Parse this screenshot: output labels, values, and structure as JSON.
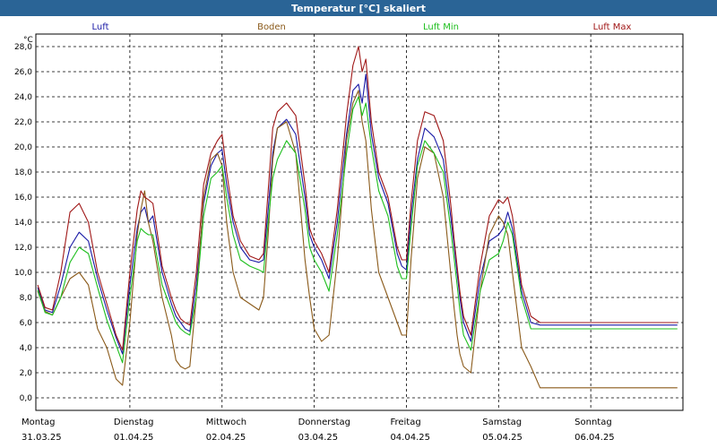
{
  "window": {
    "title": "Temperatur [°C] skaliert"
  },
  "colors": {
    "titlebar": "#2a6496"
  },
  "chart_data": {
    "type": "line",
    "ylabel": "°C",
    "ylim": [
      -1,
      29
    ],
    "yticks": [
      "0,0",
      "2,0",
      "4,0",
      "6,0",
      "8,0",
      "10,0",
      "12,0",
      "14,0",
      "16,0",
      "18,0",
      "20,0",
      "22,0",
      "24,0",
      "26,0",
      "28,0"
    ],
    "ytick_values": [
      0,
      2,
      4,
      6,
      8,
      10,
      12,
      14,
      16,
      18,
      20,
      22,
      24,
      26,
      28
    ],
    "xlim": [
      -0.02,
      7.0
    ],
    "x": [
      0.0,
      0.08,
      0.16,
      0.25,
      0.35,
      0.45,
      0.55,
      0.65,
      0.75,
      0.85,
      0.92,
      1.0,
      1.08,
      1.12,
      1.16,
      1.2,
      1.25,
      1.35,
      1.45,
      1.5,
      1.55,
      1.6,
      1.65,
      1.72,
      1.8,
      1.88,
      1.95,
      2.0,
      2.05,
      2.12,
      2.2,
      2.3,
      2.4,
      2.45,
      2.5,
      2.55,
      2.6,
      2.7,
      2.8,
      2.9,
      2.95,
      3.0,
      3.08,
      3.16,
      3.25,
      3.35,
      3.42,
      3.48,
      3.52,
      3.56,
      3.62,
      3.7,
      3.8,
      3.9,
      3.95,
      4.0,
      4.05,
      4.12,
      4.2,
      4.3,
      4.4,
      4.48,
      4.52,
      4.55,
      4.58,
      4.62,
      4.7,
      4.8,
      4.9,
      5.0,
      5.05,
      5.1,
      5.15,
      5.25,
      5.35,
      5.45,
      5.5,
      5.55,
      5.6,
      5.7,
      5.8,
      5.9,
      6.0,
      6.08,
      6.15,
      6.2,
      6.28,
      6.35,
      6.42,
      6.48,
      6.52,
      6.56,
      6.62,
      6.72,
      6.84,
      6.94
    ],
    "categories": [
      "Montag\n31.03.25",
      "Dienstag\n01.04.25",
      "Mittwoch\n02.04.25",
      "Donnerstag\n03.04.25",
      "Freitag\n04.04.25",
      "Samstag\n05.04.25",
      "Sonntag\n06.04.25"
    ],
    "day_labels": [
      {
        "day": "Montag",
        "date": "31.03.25"
      },
      {
        "day": "Dienstag",
        "date": "01.04.25"
      },
      {
        "day": "Mittwoch",
        "date": "02.04.25"
      },
      {
        "day": "Donnerstag",
        "date": "03.04.25"
      },
      {
        "day": "Freitag",
        "date": "04.04.25"
      },
      {
        "day": "Samstag",
        "date": "05.04.25"
      },
      {
        "day": "Sonntag",
        "date": "06.04.25"
      }
    ],
    "legend_placement": "top",
    "grid": true,
    "series": [
      {
        "name": "Luft",
        "color": "#1a1aa6",
        "values": [
          8.8,
          7.0,
          6.8,
          9.0,
          12.0,
          13.2,
          12.5,
          9.5,
          7.0,
          4.8,
          3.5,
          9.0,
          13.5,
          14.8,
          15.2,
          14.0,
          14.5,
          10.0,
          7.5,
          6.5,
          6.0,
          5.5,
          5.3,
          9.0,
          15.5,
          18.5,
          19.5,
          19.8,
          17.0,
          14.0,
          12.0,
          11.0,
          10.8,
          11.0,
          15.0,
          19.5,
          21.5,
          22.2,
          21.0,
          16.0,
          13.0,
          12.0,
          11.0,
          9.5,
          14.0,
          21.0,
          24.5,
          25.0,
          23.5,
          25.8,
          21.0,
          17.5,
          15.5,
          11.5,
          10.5,
          10.2,
          14.5,
          19.0,
          21.5,
          20.8,
          19.0,
          14.5,
          12.0,
          10.0,
          8.0,
          6.0,
          4.5,
          9.5,
          12.5,
          13.0,
          13.5,
          14.8,
          13.5,
          8.5,
          6.0,
          5.8,
          5.8,
          5.8,
          5.8,
          5.8,
          5.8,
          5.8,
          5.8,
          5.8,
          5.8,
          5.8,
          5.8,
          5.8,
          5.8,
          5.8,
          5.8,
          5.8,
          5.8,
          5.8,
          5.8,
          5.8
        ]
      },
      {
        "name": "Boden",
        "color": "#8a5a1a",
        "values": [
          8.5,
          6.9,
          6.6,
          8.0,
          9.5,
          10.0,
          9.0,
          5.5,
          4.0,
          1.5,
          1.0,
          6.0,
          13.0,
          15.0,
          16.5,
          14.0,
          12.5,
          8.0,
          5.0,
          3.0,
          2.5,
          2.3,
          2.5,
          8.0,
          16.0,
          19.0,
          19.5,
          18.5,
          14.0,
          10.0,
          8.0,
          7.5,
          7.0,
          8.0,
          13.0,
          19.0,
          21.5,
          22.0,
          19.5,
          11.0,
          8.0,
          5.5,
          4.5,
          5.0,
          11.0,
          20.5,
          23.5,
          24.5,
          22.0,
          20.5,
          15.0,
          10.0,
          8.0,
          6.0,
          5.0,
          5.0,
          11.0,
          17.5,
          20.0,
          19.5,
          16.0,
          10.0,
          7.0,
          5.0,
          3.5,
          2.5,
          2.0,
          8.5,
          13.0,
          14.5,
          14.0,
          13.0,
          10.0,
          4.0,
          2.5,
          0.8,
          0.8,
          0.8,
          0.8,
          0.8,
          0.8,
          0.8,
          0.8,
          0.8,
          0.8,
          0.8,
          0.8,
          0.8,
          0.8,
          0.8,
          0.8,
          0.8,
          0.8,
          0.8,
          0.8,
          0.8
        ]
      },
      {
        "name": "Luft Min",
        "color": "#1fbf1f",
        "values": [
          8.6,
          6.8,
          6.6,
          8.0,
          10.8,
          12.0,
          11.5,
          8.8,
          6.2,
          4.2,
          2.8,
          8.0,
          12.5,
          13.5,
          13.2,
          13.0,
          13.0,
          9.0,
          7.0,
          6.0,
          5.5,
          5.2,
          5.0,
          8.0,
          14.5,
          17.5,
          18.0,
          18.5,
          16.0,
          13.0,
          11.0,
          10.5,
          10.2,
          10.0,
          14.0,
          17.5,
          19.0,
          20.5,
          19.5,
          15.0,
          12.0,
          11.0,
          10.0,
          8.5,
          13.0,
          19.5,
          23.0,
          24.0,
          22.5,
          23.5,
          20.0,
          16.5,
          14.5,
          10.5,
          9.5,
          9.5,
          13.5,
          18.5,
          20.5,
          19.5,
          18.0,
          13.5,
          11.0,
          9.0,
          7.0,
          5.0,
          3.8,
          8.5,
          11.0,
          11.5,
          12.5,
          14.0,
          13.0,
          8.0,
          5.5,
          5.5,
          5.5,
          5.5,
          5.5,
          5.5,
          5.5,
          5.5,
          5.5,
          5.5,
          5.5,
          5.5,
          5.5,
          5.5,
          5.5,
          5.5,
          5.5,
          5.5,
          5.5,
          5.5,
          5.5,
          5.5
        ]
      },
      {
        "name": "Luft Max",
        "color": "#a01818",
        "values": [
          9.0,
          7.2,
          7.0,
          10.0,
          14.8,
          15.5,
          14.0,
          10.0,
          7.5,
          5.0,
          3.8,
          10.0,
          15.0,
          16.5,
          16.0,
          15.8,
          15.5,
          10.5,
          8.0,
          7.0,
          6.3,
          6.0,
          5.8,
          10.0,
          17.0,
          19.5,
          20.5,
          21.0,
          18.0,
          14.5,
          12.5,
          11.3,
          11.0,
          11.5,
          16.5,
          21.5,
          22.8,
          23.5,
          22.5,
          17.0,
          13.5,
          12.5,
          11.5,
          10.0,
          15.0,
          22.5,
          26.5,
          28.0,
          26.0,
          27.0,
          22.0,
          18.0,
          16.0,
          12.0,
          11.0,
          11.0,
          15.5,
          20.5,
          22.8,
          22.5,
          20.5,
          15.5,
          12.5,
          10.5,
          8.5,
          6.5,
          5.0,
          10.5,
          14.5,
          15.8,
          15.5,
          16.0,
          14.5,
          9.0,
          6.5,
          6.0,
          6.0,
          6.0,
          6.0,
          6.0,
          6.0,
          6.0,
          6.0,
          6.0,
          6.0,
          6.0,
          6.0,
          6.0,
          6.0,
          6.0,
          6.0,
          6.0,
          6.0,
          6.0,
          6.0,
          6.0
        ]
      }
    ]
  }
}
